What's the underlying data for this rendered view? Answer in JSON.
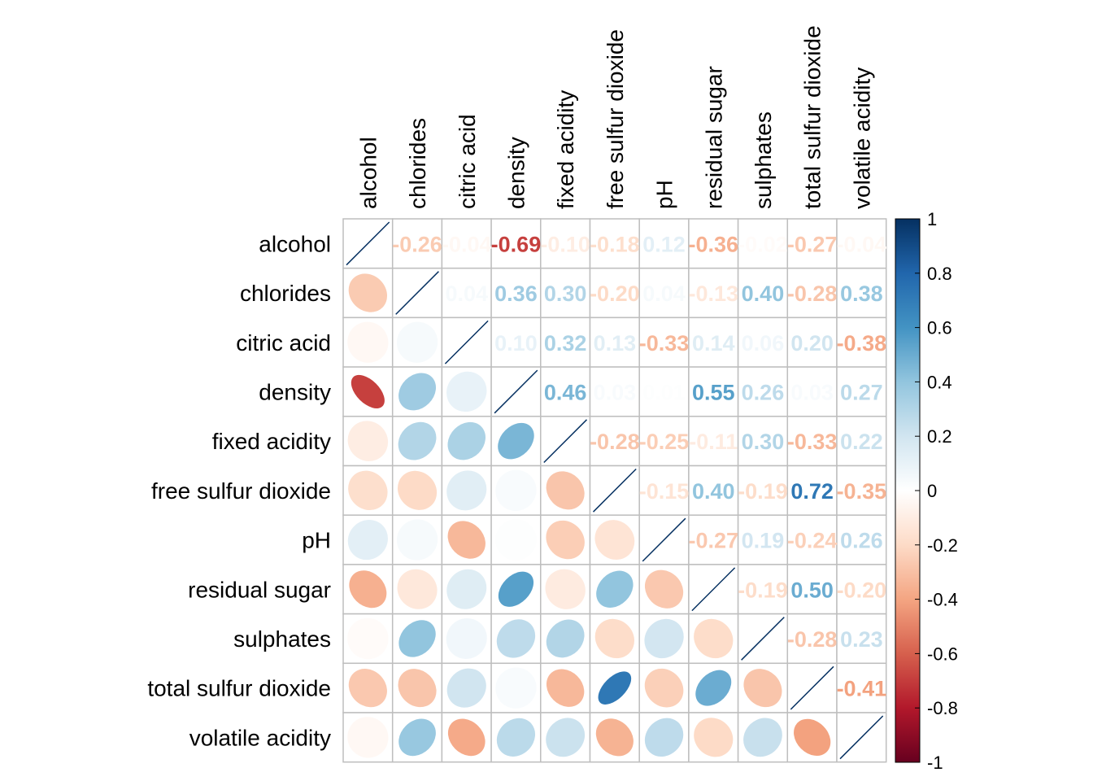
{
  "chart_data": {
    "type": "heatmap",
    "title": "",
    "variables": [
      "alcohol",
      "chlorides",
      "citric acid",
      "density",
      "fixed acidity",
      "free sulfur dioxide",
      "pH",
      "residual sugar",
      "sulphates",
      "total sulfur dioxide",
      "volatile acidity"
    ],
    "matrix": [
      [
        1.0,
        -0.26,
        -0.04,
        -0.69,
        -0.1,
        -0.18,
        0.12,
        -0.36,
        -0.02,
        -0.27,
        -0.04
      ],
      [
        -0.26,
        1.0,
        0.04,
        0.36,
        0.3,
        -0.2,
        0.04,
        -0.13,
        0.4,
        -0.28,
        0.38
      ],
      [
        -0.04,
        0.04,
        1.0,
        0.1,
        0.32,
        0.13,
        -0.33,
        0.14,
        0.06,
        0.2,
        -0.38
      ],
      [
        -0.69,
        0.36,
        0.1,
        1.0,
        0.46,
        0.03,
        0.01,
        0.55,
        0.26,
        0.03,
        0.27
      ],
      [
        -0.1,
        0.3,
        0.32,
        0.46,
        1.0,
        -0.28,
        -0.25,
        -0.11,
        0.3,
        -0.33,
        0.22
      ],
      [
        -0.18,
        -0.2,
        0.13,
        0.03,
        -0.28,
        1.0,
        -0.15,
        0.4,
        -0.19,
        0.72,
        -0.35
      ],
      [
        0.12,
        0.04,
        -0.33,
        0.01,
        -0.25,
        -0.15,
        1.0,
        -0.27,
        0.19,
        -0.24,
        0.26
      ],
      [
        -0.36,
        -0.13,
        0.14,
        0.55,
        -0.11,
        0.4,
        -0.27,
        1.0,
        -0.19,
        0.5,
        -0.2
      ],
      [
        -0.02,
        0.4,
        0.06,
        0.26,
        0.3,
        -0.19,
        0.19,
        -0.19,
        1.0,
        -0.28,
        0.23
      ],
      [
        -0.27,
        -0.28,
        0.2,
        0.03,
        -0.33,
        0.72,
        -0.24,
        0.5,
        -0.28,
        1.0,
        -0.41
      ],
      [
        -0.04,
        0.38,
        -0.38,
        0.27,
        0.22,
        -0.35,
        0.26,
        -0.2,
        0.23,
        -0.41,
        1.0
      ]
    ],
    "lower_method": "ellipse",
    "upper_method": "number",
    "diagonal_label": "1",
    "colorbar": {
      "range": [
        -1,
        1
      ],
      "ticks": [
        "1",
        "0.8",
        "0.6",
        "0.4",
        "0.2",
        "0",
        "-0.2",
        "-0.4",
        "-0.6",
        "-0.8",
        "-1"
      ],
      "palette": [
        "#67001F",
        "#B2182B",
        "#D6604D",
        "#F4A582",
        "#FDDBC7",
        "#FFFFFF",
        "#D1E5F0",
        "#92C5DE",
        "#4393C3",
        "#2166AC",
        "#053061"
      ]
    },
    "grid": true,
    "legend_position": "right"
  }
}
